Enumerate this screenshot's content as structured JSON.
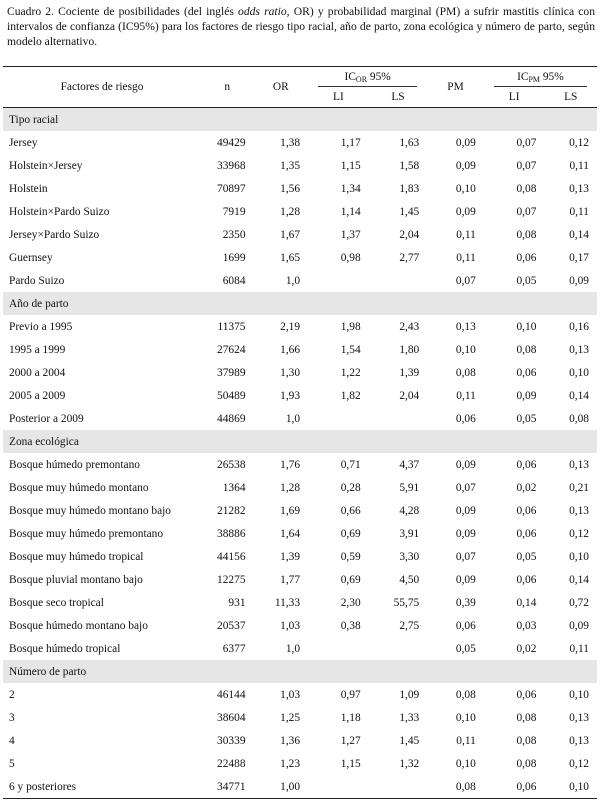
{
  "caption": {
    "prefix": "Cuadro 2. Cociente de posibilidades (del inglés ",
    "italic": "odds ratio",
    "suffix": ", OR) y probabilidad marginal (PM) a sufrir mastitis clínica con intervalos de confianza (IC95%)  para los factores de riesgo tipo racial, año de parto, zona ecológica y número de parto, según modelo alternativo."
  },
  "headers": {
    "factor": "Factores de riesgo",
    "n": "n",
    "or": "OR",
    "ic_or_main": "IC",
    "ic_or_sub": "OR",
    "ic_or_pct": " 95%",
    "pm": "PM",
    "ic_pm_main": "IC",
    "ic_pm_sub": "PM",
    "ic_pm_pct": " 95%",
    "li": "LI",
    "ls": "LS",
    "li2": "LI",
    "ls2": "LS"
  },
  "sections": [
    {
      "title": "Tipo racial",
      "rows": [
        [
          "Jersey",
          "49429",
          "1,38",
          "1,17",
          "1,63",
          "0,09",
          "0,07",
          "0,12"
        ],
        [
          "Holstein×Jersey",
          "33968",
          "1,35",
          "1,15",
          "1,58",
          "0,09",
          "0,07",
          "0,11"
        ],
        [
          "Holstein",
          "70897",
          "1,56",
          "1,34",
          "1,83",
          "0,10",
          "0,08",
          "0,13"
        ],
        [
          "Holstein×Pardo Suizo",
          "7919",
          "1,28",
          "1,14",
          "1,45",
          "0,09",
          "0,07",
          "0,11"
        ],
        [
          "Jersey×Pardo Suizo",
          "2350",
          "1,67",
          "1,37",
          "2,04",
          "0,11",
          "0,08",
          "0,14"
        ],
        [
          "Guernsey",
          "1699",
          "1,65",
          "0,98",
          "2,77",
          "0,11",
          "0,06",
          "0,17"
        ],
        [
          "Pardo Suizo",
          "6084",
          "1,0",
          "",
          "",
          "0,07",
          "0,05",
          "0,09"
        ]
      ]
    },
    {
      "title": "Año de parto",
      "rows": [
        [
          "Previo a 1995",
          "11375",
          "2,19",
          "1,98",
          "2,43",
          "0,13",
          "0,10",
          "0,16"
        ],
        [
          "1995 a 1999",
          "27624",
          "1,66",
          "1,54",
          "1,80",
          "0,10",
          "0,08",
          "0,13"
        ],
        [
          "2000 a 2004",
          "37989",
          "1,30",
          "1,22",
          "1,39",
          "0,08",
          "0,06",
          "0,10"
        ],
        [
          "2005 a 2009",
          "50489",
          "1,93",
          "1,82",
          "2,04",
          "0,11",
          "0,09",
          "0,14"
        ],
        [
          "Posterior a 2009",
          "44869",
          "1,0",
          "",
          "",
          "0,06",
          "0,05",
          "0,08"
        ]
      ]
    },
    {
      "title": "Zona ecológica",
      "rows": [
        [
          "Bosque húmedo premontano",
          "26538",
          "1,76",
          "0,71",
          "4,37",
          "0,09",
          "0,06",
          "0,13"
        ],
        [
          "Bosque muy húmedo montano",
          "1364",
          "1,28",
          "0,28",
          "5,91",
          "0,07",
          "0,02",
          "0,21"
        ],
        [
          "Bosque muy húmedo montano bajo",
          "21282",
          "1,69",
          "0,66",
          "4,28",
          "0,09",
          "0,06",
          "0,13"
        ],
        [
          "Bosque muy húmedo premontano",
          "38886",
          "1,64",
          "0,69",
          "3,91",
          "0,09",
          "0,06",
          "0,12"
        ],
        [
          "Bosque muy húmedo tropical",
          "44156",
          "1,39",
          "0,59",
          "3,30",
          "0,07",
          "0,05",
          "0,10"
        ],
        [
          "Bosque pluvial montano bajo",
          "12275",
          "1,77",
          "0,69",
          "4,50",
          "0,09",
          "0,06",
          "0,14"
        ],
        [
          "Bosque seco tropical",
          "931",
          "11,33",
          "2,30",
          "55,75",
          "0,39",
          "0,14",
          "0,72"
        ],
        [
          "Bosque húmedo montano bajo",
          "20537",
          "1,03",
          "0,38",
          "2,75",
          "0,06",
          "0,03",
          "0,09"
        ],
        [
          "Bosque húmedo tropical",
          "6377",
          "1,0",
          "",
          "",
          "0,05",
          "0,02",
          "0,11"
        ]
      ]
    },
    {
      "title": "Número de parto",
      "rows": [
        [
          "2",
          "46144",
          "1,03",
          "0,97",
          "1,09",
          "0,08",
          "0,06",
          "0,10"
        ],
        [
          "3",
          "38604",
          "1,25",
          "1,18",
          "1,33",
          "0,10",
          "0,08",
          "0,13"
        ],
        [
          "4",
          "30339",
          "1,36",
          "1,27",
          "1,45",
          "0,11",
          "0,08",
          "0,13"
        ],
        [
          "5",
          "22488",
          "1,23",
          "1,15",
          "1,32",
          "0,10",
          "0,08",
          "0,12"
        ],
        [
          "6 y posteriores",
          "34771",
          "1,00",
          "",
          "",
          "0,08",
          "0,06",
          "0,10"
        ]
      ]
    }
  ]
}
